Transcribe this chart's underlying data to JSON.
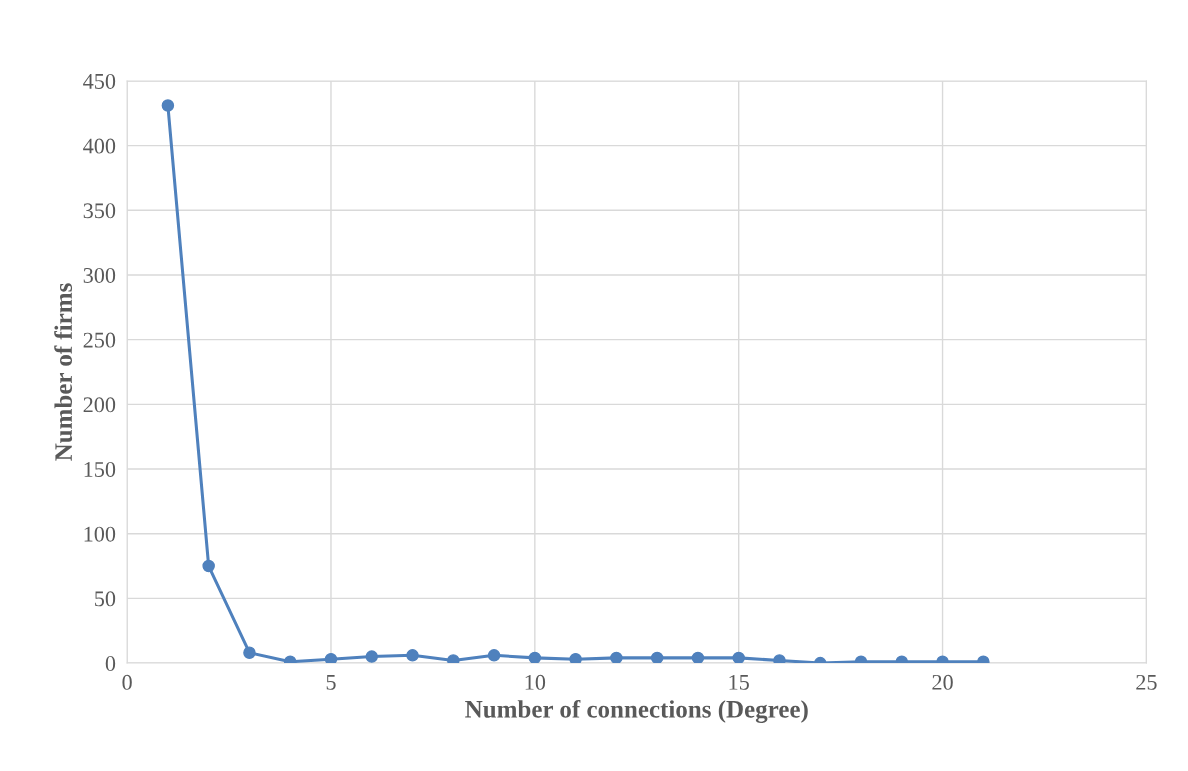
{
  "chart_data": {
    "type": "line",
    "xlabel": "Number of connections (Degree)",
    "ylabel": "Number of firms",
    "x": [
      1,
      2,
      3,
      4,
      5,
      6,
      7,
      8,
      9,
      10,
      11,
      12,
      13,
      14,
      15,
      16,
      17,
      18,
      19,
      20,
      21
    ],
    "series": [
      {
        "color": "#4f81bd",
        "values": [
          431,
          75,
          8,
          1,
          3,
          5,
          6,
          2,
          6,
          4,
          3,
          4,
          4,
          4,
          4,
          2,
          0,
          1,
          1,
          1,
          1
        ]
      }
    ],
    "xlim": [
      0,
      25
    ],
    "xticks": [
      0,
      5,
      10,
      15,
      20,
      25
    ],
    "ylim": [
      0,
      450
    ],
    "yticks": [
      0,
      50,
      100,
      150,
      200,
      250,
      300,
      350,
      400,
      450
    ],
    "grid": true,
    "marker": "circle",
    "line_style": "solid"
  }
}
